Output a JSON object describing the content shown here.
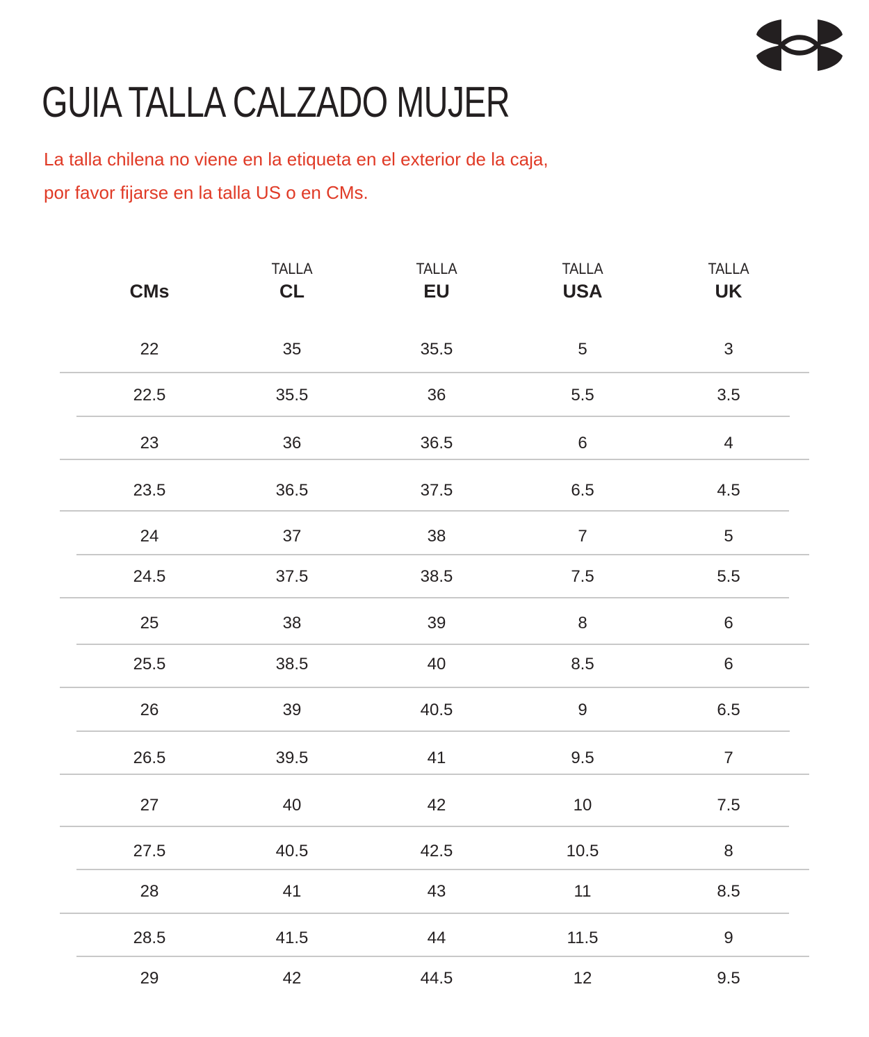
{
  "brand": {
    "logo": "Under Armour logo",
    "color": "#231f20"
  },
  "title": "GUIA TALLA CALZADO MUJER",
  "subtitle": {
    "line1": "La talla chilena no viene en la etiqueta en el exterior de la caja,",
    "line2": "por favor fijarse en la talla US o en CMs.",
    "color": "#e03a26"
  },
  "table": {
    "headers": [
      {
        "top": "",
        "main": "CMs"
      },
      {
        "top": "TALLA",
        "main": "CL"
      },
      {
        "top": "TALLA",
        "main": "EU"
      },
      {
        "top": "TALLA",
        "main": "USA"
      },
      {
        "top": "TALLA",
        "main": "UK"
      }
    ],
    "rows": [
      [
        "22",
        "35",
        "35.5",
        "5",
        "3"
      ],
      [
        "22.5",
        "35.5",
        "36",
        "5.5",
        "3.5"
      ],
      [
        "23",
        "36",
        "36.5",
        "6",
        "4"
      ],
      [
        "23.5",
        "36.5",
        "37.5",
        "6.5",
        "4.5"
      ],
      [
        "24",
        "37",
        "38",
        "7",
        "5"
      ],
      [
        "24.5",
        "37.5",
        "38.5",
        "7.5",
        "5.5"
      ],
      [
        "25",
        "38",
        "39",
        "8",
        "6"
      ],
      [
        "25.5",
        "38.5",
        "40",
        "8.5",
        "6"
      ],
      [
        "26",
        "39",
        "40.5",
        "9",
        "6.5"
      ],
      [
        "26.5",
        "39.5",
        "41",
        "9.5",
        "7"
      ],
      [
        "27",
        "40",
        "42",
        "10",
        "7.5"
      ],
      [
        "27.5",
        "40.5",
        "42.5",
        "10.5",
        "8"
      ],
      [
        "28",
        "41",
        "43",
        "11",
        "8.5"
      ],
      [
        "28.5",
        "41.5",
        "44",
        "11.5",
        "9"
      ],
      [
        "29",
        "42",
        "44.5",
        "12",
        "9.5"
      ]
    ]
  }
}
